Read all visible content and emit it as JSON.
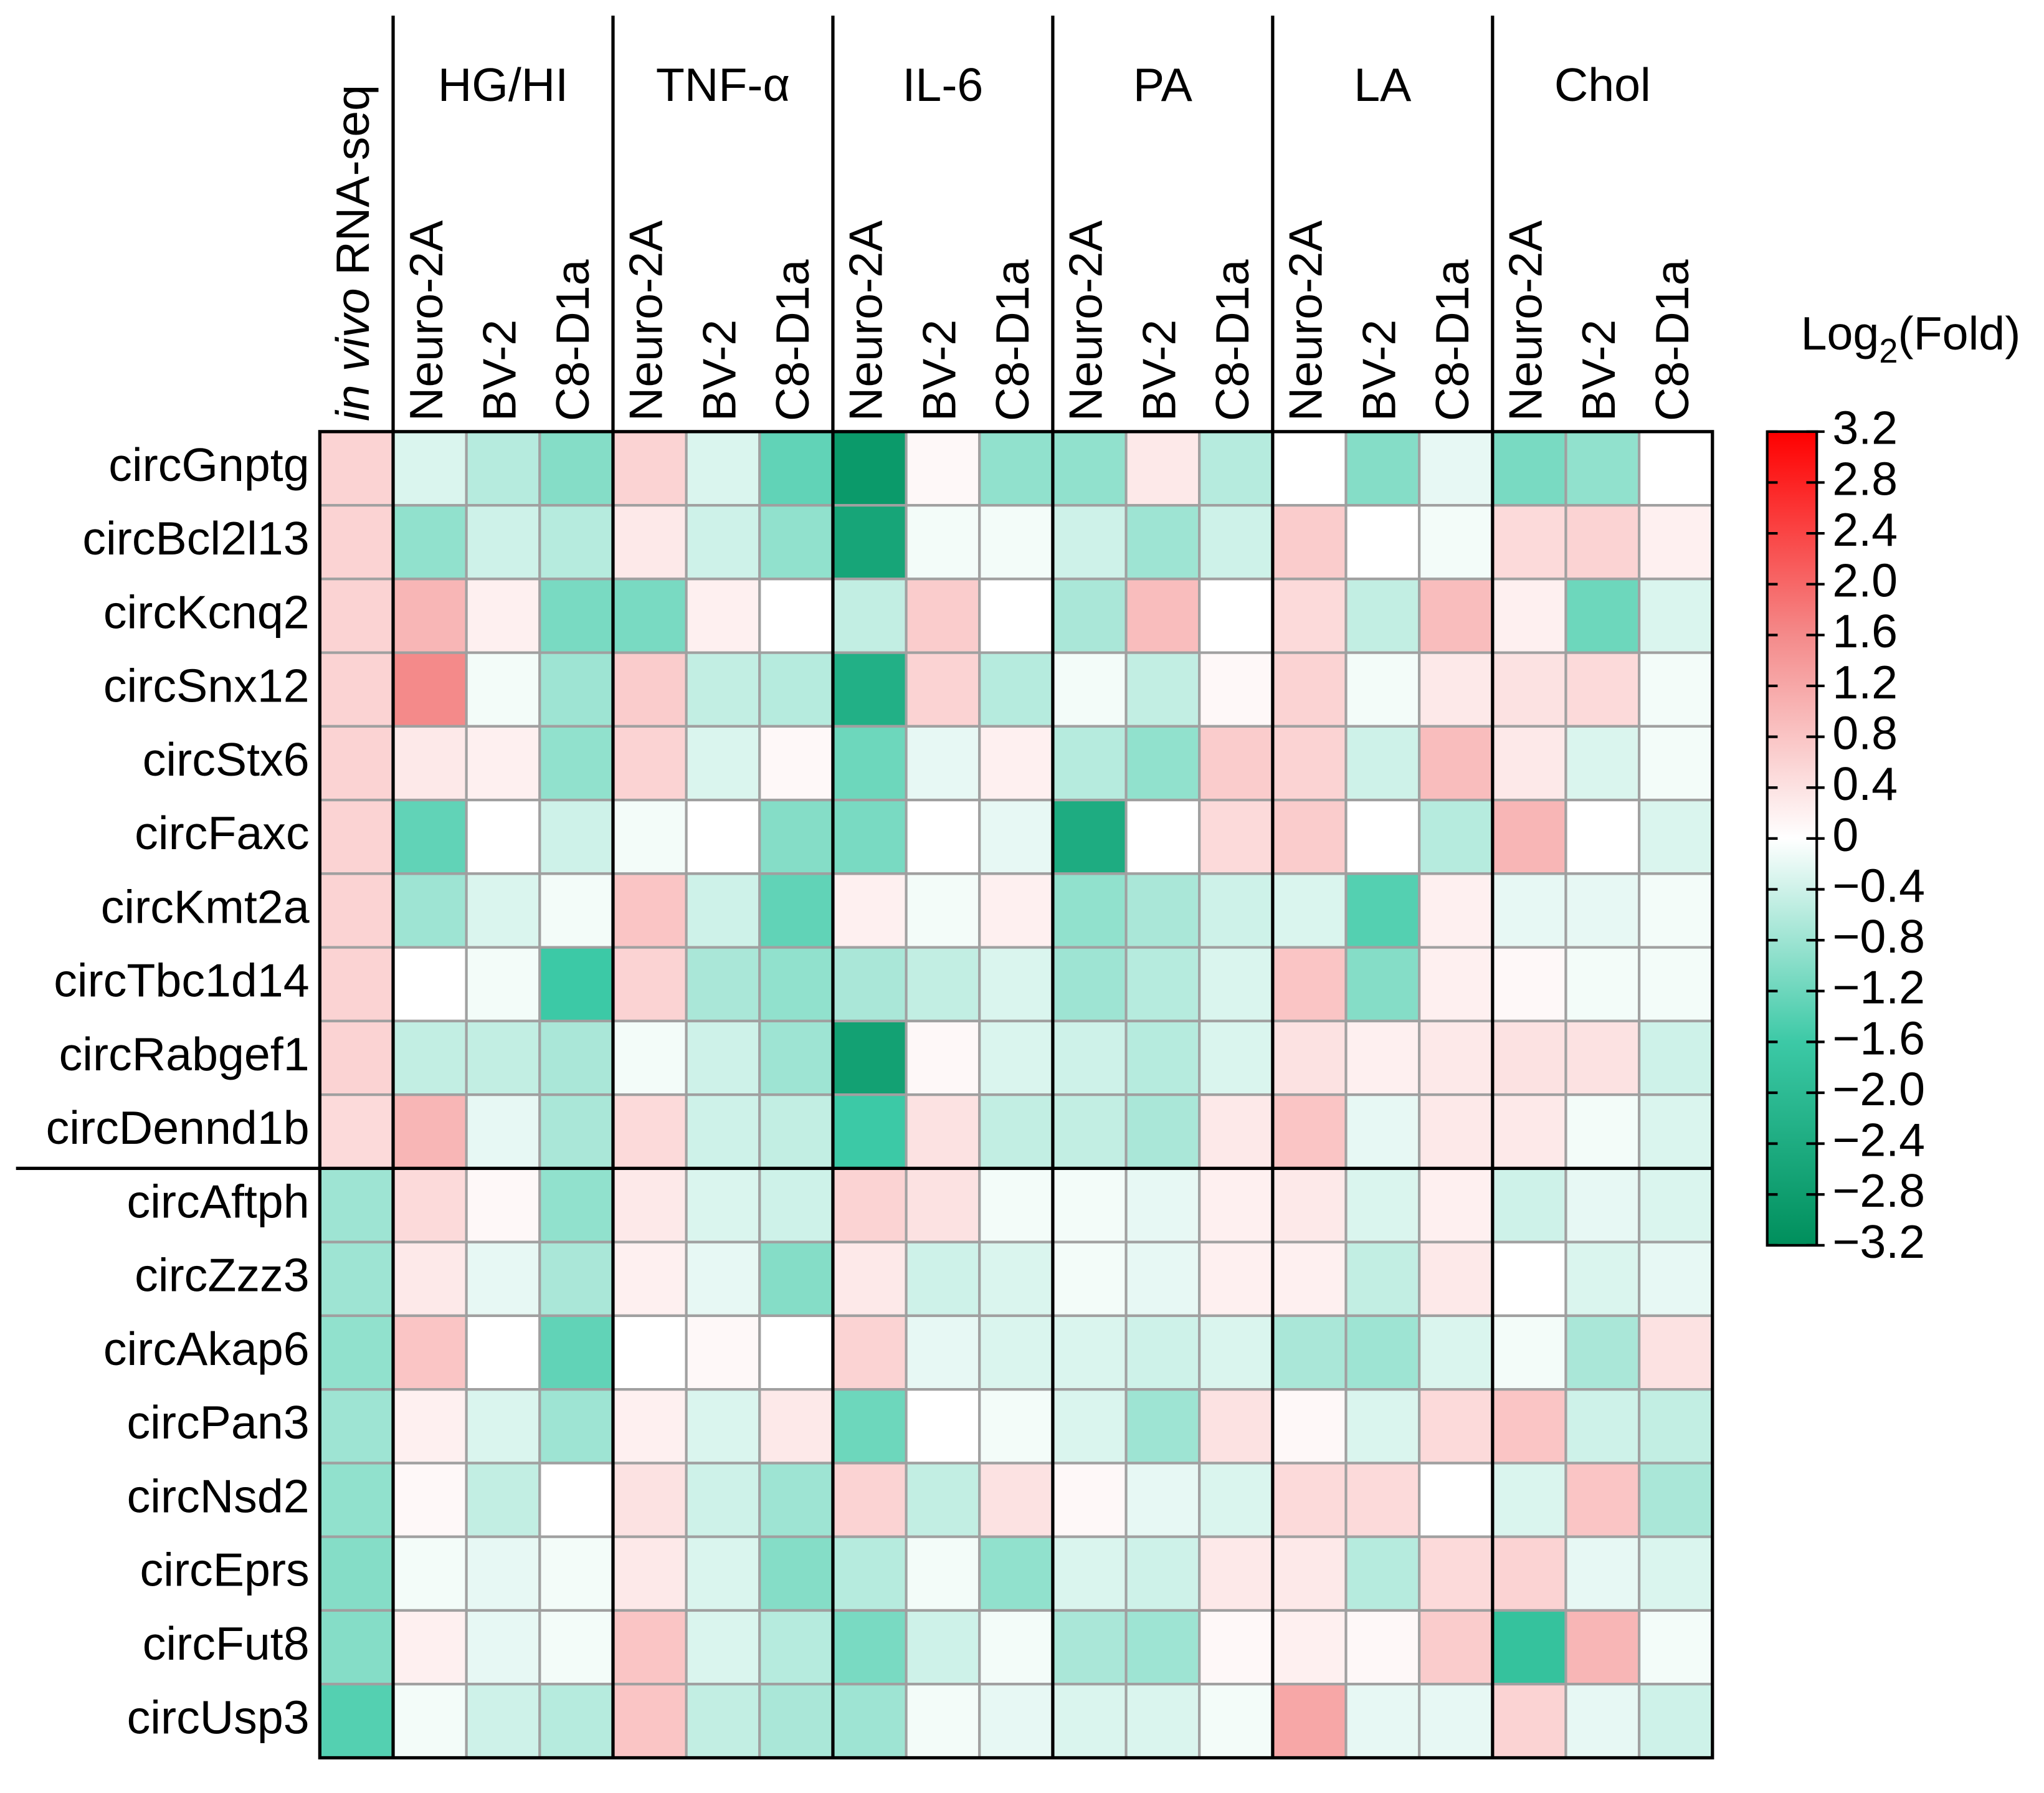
{
  "chart_data": {
    "type": "heatmap",
    "groups": [
      "HG/HI",
      "TNF-α",
      "IL-6",
      "PA",
      "LA",
      "Chol"
    ],
    "columns": [
      "in vivo RNA-seq",
      "Neuro-2A",
      "BV-2",
      "C8-D1a",
      "Neuro-2A",
      "BV-2",
      "C8-D1a",
      "Neuro-2A",
      "BV-2",
      "C8-D1a",
      "Neuro-2A",
      "BV-2",
      "C8-D1a",
      "Neuro-2A",
      "BV-2",
      "C8-D1a",
      "Neuro-2A",
      "BV-2",
      "C8-D1a"
    ],
    "rows": [
      "circGnptg",
      "circBcl2l13",
      "circKcnq2",
      "circSnx12",
      "circStx6",
      "circFaxc",
      "circKmt2a",
      "circTbc1d14",
      "circRabgef1",
      "circDennd1b",
      "circAftph",
      "circZzz3",
      "circAkap6",
      "circPan3",
      "circNsd2",
      "circEprs",
      "circFut8",
      "circUsp3"
    ],
    "values": [
      [
        0.6,
        -0.3,
        -0.6,
        -1.0,
        0.6,
        -0.3,
        -1.3,
        -2.9,
        0.1,
        -0.9,
        -0.9,
        0.3,
        -0.6,
        0,
        -1.0,
        -0.2,
        -1.1,
        -0.9,
        0
      ],
      [
        0.6,
        -0.9,
        -0.4,
        -0.6,
        0.3,
        -0.4,
        -0.9,
        -2.6,
        -0.1,
        -0.1,
        -0.4,
        -0.8,
        -0.4,
        0.7,
        0,
        -0.1,
        0.5,
        0.6,
        0.2
      ],
      [
        0.6,
        1.0,
        0.2,
        -1.1,
        -1.1,
        0.2,
        0,
        -0.5,
        0.7,
        0,
        -0.7,
        0.9,
        0,
        0.5,
        -0.5,
        0.9,
        0.2,
        -1.2,
        -0.3
      ],
      [
        0.6,
        1.6,
        -0.1,
        -0.8,
        0.7,
        -0.5,
        -0.6,
        -2.3,
        0.6,
        -0.6,
        -0.1,
        -0.5,
        0.1,
        0.6,
        -0.1,
        0.3,
        0.4,
        0.5,
        -0.1
      ],
      [
        0.6,
        0.3,
        0.2,
        -0.9,
        0.6,
        -0.3,
        0.1,
        -1.2,
        -0.2,
        0.2,
        -0.6,
        -0.9,
        0.7,
        0.6,
        -0.4,
        0.9,
        0.3,
        -0.3,
        -0.1
      ],
      [
        0.6,
        -1.3,
        0,
        -0.4,
        -0.1,
        0,
        -1.0,
        -1.1,
        0,
        -0.2,
        -2.4,
        0,
        0.5,
        0.7,
        0,
        -0.6,
        1.0,
        0,
        -0.3
      ],
      [
        0.6,
        -0.8,
        -0.3,
        -0.1,
        0.8,
        -0.4,
        -1.3,
        0.2,
        -0.1,
        0.2,
        -0.9,
        -0.7,
        -0.4,
        -0.3,
        -1.4,
        0.2,
        -0.2,
        -0.2,
        -0.1
      ],
      [
        0.6,
        0,
        -0.1,
        -1.6,
        0.6,
        -0.7,
        -0.9,
        -0.7,
        -0.5,
        -0.3,
        -0.8,
        -0.6,
        -0.3,
        0.8,
        -1.0,
        0.2,
        0.1,
        -0.1,
        -0.1
      ],
      [
        0.6,
        -0.5,
        -0.5,
        -0.7,
        -0.1,
        -0.4,
        -0.8,
        -2.7,
        0.1,
        -0.3,
        -0.4,
        -0.6,
        -0.3,
        0.4,
        0.2,
        0.3,
        0.4,
        0.4,
        -0.4
      ],
      [
        0.5,
        1.0,
        -0.2,
        -0.7,
        0.5,
        -0.4,
        -0.5,
        -1.6,
        0.4,
        -0.5,
        -0.5,
        -0.7,
        0.3,
        0.8,
        -0.2,
        0.3,
        0.3,
        -0.1,
        -0.3
      ],
      [
        -0.8,
        0.5,
        0.1,
        -0.9,
        0.3,
        -0.3,
        -0.4,
        0.6,
        0.4,
        -0.1,
        -0.1,
        -0.2,
        0.2,
        0.3,
        -0.3,
        0.2,
        -0.4,
        -0.2,
        -0.3
      ],
      [
        -0.8,
        0.3,
        -0.2,
        -0.7,
        0.2,
        -0.2,
        -1.0,
        0.3,
        -0.4,
        -0.3,
        -0.1,
        -0.2,
        0.2,
        0.2,
        -0.5,
        0.3,
        0,
        -0.3,
        -0.2
      ],
      [
        -0.9,
        0.8,
        0,
        -1.3,
        0,
        0.1,
        0,
        0.6,
        -0.2,
        -0.3,
        -0.3,
        -0.4,
        -0.3,
        -0.7,
        -0.8,
        -0.3,
        -0.1,
        -0.7,
        0.4
      ],
      [
        -0.8,
        0.2,
        -0.3,
        -0.8,
        0.2,
        -0.3,
        0.3,
        -1.2,
        0,
        -0.1,
        -0.3,
        -0.8,
        0.4,
        0.1,
        -0.3,
        0.5,
        0.8,
        -0.4,
        -0.5
      ],
      [
        -0.9,
        0.1,
        -0.5,
        0,
        0.4,
        -0.4,
        -0.8,
        0.6,
        -0.5,
        0.4,
        0.1,
        -0.2,
        -0.3,
        0.5,
        0.5,
        0,
        -0.3,
        0.8,
        -0.7
      ],
      [
        -1.0,
        -0.1,
        -0.2,
        -0.1,
        0.3,
        -0.3,
        -1.0,
        -0.6,
        -0.1,
        -0.9,
        -0.3,
        -0.4,
        0.3,
        0.3,
        -0.6,
        0.5,
        0.6,
        -0.2,
        -0.3
      ],
      [
        -1.0,
        0.2,
        -0.2,
        -0.1,
        0.8,
        -0.3,
        -0.6,
        -1.1,
        -0.4,
        -0.1,
        -0.7,
        -0.8,
        0.1,
        0.2,
        0.1,
        0.7,
        -1.8,
        1.0,
        -0.1
      ],
      [
        -1.4,
        -0.1,
        -0.4,
        -0.6,
        0.8,
        -0.5,
        -0.7,
        -0.8,
        -0.1,
        -0.2,
        -0.3,
        -0.3,
        -0.1,
        1.2,
        -0.2,
        -0.2,
        0.6,
        -0.2,
        -0.4
      ]
    ],
    "colorbar_title": {
      "base": "Log",
      "subscript": "2",
      "rest": "(Fold)"
    },
    "zlim": [
      -3.2,
      3.2
    ],
    "zticks": [
      3.2,
      2.8,
      2.4,
      {
        "value": 2,
        "label": "2.0"
      },
      1.6,
      1.2,
      0.8,
      0.4,
      0,
      {
        "value": -0.4,
        "label": "−0.4"
      },
      {
        "value": -0.8,
        "label": "−0.8"
      },
      {
        "value": -1.2,
        "label": "−1.2"
      },
      {
        "value": -1.6,
        "label": "−1.6"
      },
      {
        "value": -2,
        "label": "−2.0"
      },
      {
        "value": -2.4,
        "label": "−2.4"
      },
      {
        "value": -2.8,
        "label": "−2.8"
      },
      {
        "value": -3.2,
        "label": "−3.2"
      }
    ],
    "colors": [
      "#008f5c",
      "#3cc9a6",
      "#ffffff",
      "#f48a8a",
      "#ff0000"
    ]
  }
}
